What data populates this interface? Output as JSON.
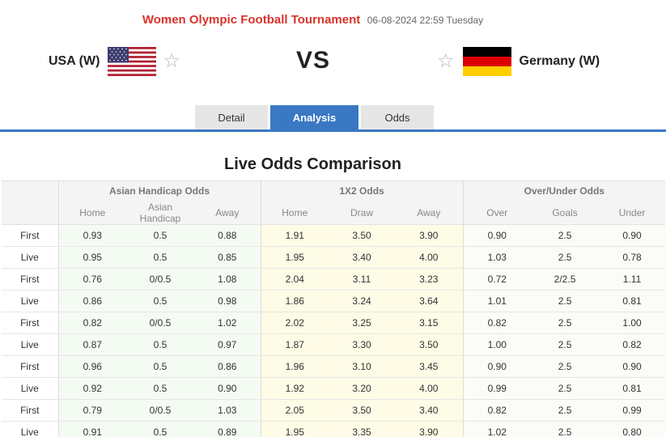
{
  "match": {
    "competition": "Women Olympic Football Tournament",
    "datetime": "06-08-2024 22:59 Tuesday",
    "home_team": "USA (W)",
    "away_team": "Germany (W)",
    "vs": "VS"
  },
  "tabs": [
    {
      "label": "Detail",
      "active": false
    },
    {
      "label": "Analysis",
      "active": true
    },
    {
      "label": "Odds",
      "active": false
    }
  ],
  "section_title": "Live Odds Comparison",
  "table": {
    "groups": [
      "Asian Handicap Odds",
      "1X2 Odds",
      "Over/Under Odds"
    ],
    "subheaders": [
      "Home",
      "Asian Handicap",
      "Away",
      "Home",
      "Draw",
      "Away",
      "Over",
      "Goals",
      "Under"
    ],
    "rows": [
      {
        "type": "First",
        "values": [
          "0.93",
          "0.5",
          "0.88",
          "1.91",
          "3.50",
          "3.90",
          "0.90",
          "2.5",
          "0.90"
        ]
      },
      {
        "type": "Live",
        "values": [
          "0.95",
          "0.5",
          "0.85",
          "1.95",
          "3.40",
          "4.00",
          "1.03",
          "2.5",
          "0.78"
        ]
      },
      {
        "type": "First",
        "values": [
          "0.76",
          "0/0.5",
          "1.08",
          "2.04",
          "3.11",
          "3.23",
          "0.72",
          "2/2.5",
          "1.11"
        ]
      },
      {
        "type": "Live",
        "values": [
          "0.86",
          "0.5",
          "0.98",
          "1.86",
          "3.24",
          "3.64",
          "1.01",
          "2.5",
          "0.81"
        ]
      },
      {
        "type": "First",
        "values": [
          "0.82",
          "0/0.5",
          "1.02",
          "2.02",
          "3.25",
          "3.15",
          "0.82",
          "2.5",
          "1.00"
        ]
      },
      {
        "type": "Live",
        "values": [
          "0.87",
          "0.5",
          "0.97",
          "1.87",
          "3.30",
          "3.50",
          "1.00",
          "2.5",
          "0.82"
        ]
      },
      {
        "type": "First",
        "values": [
          "0.96",
          "0.5",
          "0.86",
          "1.96",
          "3.10",
          "3.45",
          "0.90",
          "2.5",
          "0.90"
        ]
      },
      {
        "type": "Live",
        "values": [
          "0.92",
          "0.5",
          "0.90",
          "1.92",
          "3.20",
          "4.00",
          "0.99",
          "2.5",
          "0.81"
        ]
      },
      {
        "type": "First",
        "values": [
          "0.79",
          "0/0.5",
          "1.03",
          "2.05",
          "3.50",
          "3.40",
          "0.82",
          "2.5",
          "0.99"
        ]
      },
      {
        "type": "Live",
        "values": [
          "0.91",
          "0.5",
          "0.89",
          "1.95",
          "3.35",
          "3.90",
          "1.02",
          "2.5",
          "0.80"
        ]
      }
    ]
  },
  "icons": {
    "favorite": "star-outline-icon",
    "home_flag": "usa-flag-icon",
    "away_flag": "germany-flag-icon"
  },
  "colors": {
    "competition": "#d9342b",
    "accent": "#3a78c4",
    "asian_col_bg": "#f4fbf3",
    "x12_col_bg": "#fefbe6",
    "ou_col_bg": "#fbfcf7"
  }
}
